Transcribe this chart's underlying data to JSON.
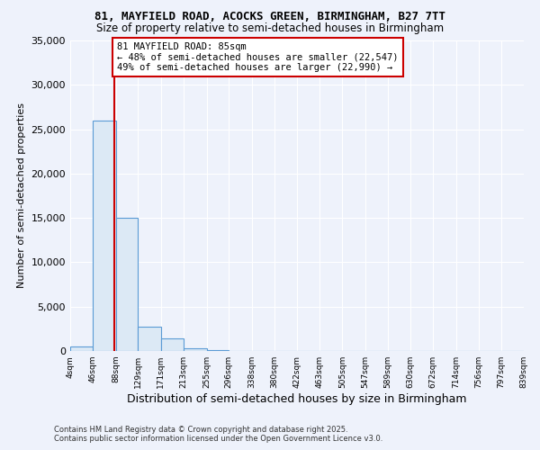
{
  "title_line1": "81, MAYFIELD ROAD, ACOCKS GREEN, BIRMINGHAM, B27 7TT",
  "title_line2": "Size of property relative to semi-detached houses in Birmingham",
  "xlabel": "Distribution of semi-detached houses by size in Birmingham",
  "ylabel": "Number of semi-detached properties",
  "annotation_title": "81 MAYFIELD ROAD: 85sqm",
  "annotation_line1": "← 48% of semi-detached houses are smaller (22,547)",
  "annotation_line2": "49% of semi-detached houses are larger (22,990) →",
  "property_size": 85,
  "footer_line1": "Contains HM Land Registry data © Crown copyright and database right 2025.",
  "footer_line2": "Contains public sector information licensed under the Open Government Licence v3.0.",
  "bar_color": "#dce9f5",
  "bar_edge_color": "#5b9bd5",
  "vline_color": "#cc0000",
  "annotation_box_color": "#ffffff",
  "annotation_box_edge": "#cc0000",
  "bins": [
    4,
    46,
    88,
    129,
    171,
    213,
    255,
    296,
    338,
    380,
    422,
    463,
    505,
    547,
    589,
    630,
    672,
    714,
    756,
    797,
    839
  ],
  "bin_labels": [
    "4sqm",
    "46sqm",
    "88sqm",
    "129sqm",
    "171sqm",
    "213sqm",
    "255sqm",
    "296sqm",
    "338sqm",
    "380sqm",
    "422sqm",
    "463sqm",
    "505sqm",
    "547sqm",
    "589sqm",
    "630sqm",
    "672sqm",
    "714sqm",
    "756sqm",
    "797sqm",
    "839sqm"
  ],
  "values": [
    550,
    26000,
    15000,
    2700,
    1400,
    300,
    80,
    30,
    10,
    5,
    3,
    2,
    1,
    1,
    0,
    0,
    0,
    0,
    0,
    0
  ],
  "ylim": [
    0,
    35000
  ],
  "yticks": [
    0,
    5000,
    10000,
    15000,
    20000,
    25000,
    30000,
    35000
  ],
  "background_color": "#eef2fb"
}
